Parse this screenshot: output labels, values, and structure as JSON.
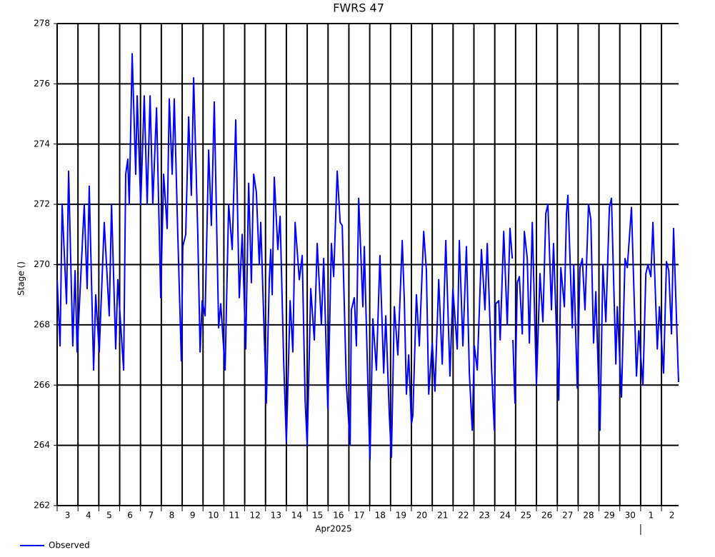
{
  "chart_data": {
    "type": "line",
    "title": "FWRS 47",
    "x_label": "Apr2025",
    "y_label": "Stage ()",
    "x": [
      3.0,
      3.14,
      3.24,
      3.45,
      3.55,
      3.75,
      3.86,
      3.96,
      4.3,
      4.44,
      4.54,
      4.75,
      4.85,
      5.02,
      5.26,
      5.5,
      5.61,
      5.81,
      5.91,
      6.19,
      6.29,
      6.39,
      6.46,
      6.6,
      6.77,
      6.84,
      7.01,
      7.18,
      7.32,
      7.46,
      7.59,
      7.77,
      7.97,
      8.11,
      8.28,
      8.38,
      8.52,
      8.62,
      8.79,
      8.96,
      9.03,
      9.17,
      9.31,
      9.44,
      9.55,
      9.75,
      9.86,
      9.96,
      10.1,
      10.27,
      10.4,
      10.54,
      10.75,
      10.85,
      11.06,
      11.23,
      11.4,
      11.57,
      11.74,
      11.88,
      12.05,
      12.19,
      12.32,
      12.43,
      12.56,
      12.7,
      12.77,
      13.04,
      13.18,
      13.25,
      13.32,
      13.42,
      13.59,
      13.7,
      13.87,
      14.0,
      14.18,
      14.31,
      14.42,
      14.62,
      14.76,
      14.9,
      15.0,
      15.17,
      15.34,
      15.48,
      15.68,
      15.79,
      15.99,
      16.16,
      16.27,
      16.44,
      16.58,
      16.68,
      16.88,
      17.06,
      17.12,
      17.26,
      17.36,
      17.47,
      17.67,
      17.74,
      17.95,
      18.01,
      18.15,
      18.32,
      18.49,
      18.67,
      18.77,
      18.94,
      19.04,
      19.18,
      19.35,
      19.56,
      19.66,
      19.76,
      19.87,
      20.0,
      20.07,
      20.24,
      20.38,
      20.59,
      20.72,
      20.83,
      21.0,
      21.13,
      21.31,
      21.48,
      21.65,
      21.85,
      21.99,
      22.2,
      22.3,
      22.47,
      22.64,
      22.78,
      22.92,
      23.02,
      23.16,
      23.36,
      23.53,
      23.64,
      23.85,
      23.98,
      24.05,
      24.19,
      24.26,
      24.43,
      24.6,
      24.73,
      24.84,
      24.85,
      24.87,
      24.97,
      25.08,
      25.18,
      25.32,
      25.42,
      25.56,
      25.66,
      25.8,
      26.0,
      26.17,
      26.31,
      26.45,
      26.55,
      26.72,
      26.82,
      27.07,
      27.17,
      27.34,
      27.44,
      27.51,
      27.72,
      27.79,
      27.96,
      28.09,
      28.2,
      28.33,
      28.5,
      28.61,
      28.74,
      28.85,
      29.05,
      29.19,
      29.33,
      29.5,
      29.6,
      29.81,
      29.88,
      30.08,
      30.25,
      30.36,
      30.56,
      30.8,
      30.91,
      31.11,
      31.25,
      31.35,
      31.49,
      31.59,
      31.8,
      31.9,
      32.1,
      32.24,
      32.35,
      32.48,
      32.58,
      32.79,
      32.82
    ],
    "series": [
      {
        "name": "Observed",
        "color": "#0000ff",
        "values": [
          269.5,
          267.3,
          272.0,
          268.7,
          273.1,
          267.3,
          269.8,
          267.1,
          272.0,
          269.2,
          272.6,
          266.5,
          269.0,
          267.1,
          271.4,
          268.3,
          272.0,
          267.2,
          269.5,
          266.5,
          273.0,
          273.5,
          272.0,
          277.0,
          273.0,
          275.6,
          272.0,
          275.6,
          272.0,
          275.6,
          272.0,
          275.2,
          268.9,
          273.0,
          271.2,
          275.5,
          273.0,
          275.5,
          271.0,
          266.8,
          270.6,
          271.0,
          274.9,
          272.3,
          276.2,
          271.0,
          267.1,
          268.8,
          268.3,
          273.8,
          271.3,
          275.4,
          267.9,
          268.7,
          266.5,
          272.0,
          270.5,
          274.8,
          268.9,
          271.0,
          267.2,
          272.7,
          269.4,
          273.0,
          272.4,
          270.0,
          271.4,
          265.4,
          269.5,
          270.5,
          269.0,
          272.9,
          270.5,
          271.6,
          266.8,
          264.1,
          268.8,
          267.1,
          271.4,
          269.5,
          270.3,
          265.5,
          264.0,
          269.2,
          267.5,
          270.7,
          268.0,
          270.2,
          265.2,
          270.7,
          269.6,
          273.1,
          271.4,
          271.3,
          266.0,
          264.0,
          268.5,
          268.9,
          267.3,
          272.2,
          268.6,
          270.6,
          265.0,
          263.5,
          268.2,
          266.5,
          270.3,
          266.4,
          268.3,
          265.0,
          263.6,
          268.6,
          267.0,
          270.8,
          268.8,
          265.7,
          267.0,
          264.7,
          265.0,
          269.0,
          267.3,
          271.1,
          269.8,
          265.7,
          267.4,
          265.8,
          269.5,
          266.7,
          270.8,
          266.3,
          269.2,
          267.2,
          270.8,
          267.3,
          270.6,
          266.4,
          264.5,
          267.3,
          266.5,
          270.5,
          268.5,
          270.7,
          266.5,
          264.5,
          268.7,
          268.8,
          267.5,
          271.1,
          268.0,
          271.2,
          270.2,
          null,
          267.5,
          265.4,
          269.4,
          269.6,
          267.7,
          271.1,
          270.2,
          267.4,
          271.4,
          266.0,
          269.7,
          268.1,
          271.7,
          272.0,
          268.5,
          270.7,
          265.5,
          269.9,
          268.6,
          271.7,
          272.3,
          267.9,
          270.0,
          265.9,
          269.9,
          270.2,
          268.5,
          272.0,
          271.5,
          267.4,
          269.1,
          264.5,
          270.0,
          268.1,
          271.9,
          272.2,
          266.7,
          268.6,
          265.6,
          270.2,
          269.9,
          271.9,
          266.3,
          267.8,
          266.0,
          269.7,
          270.0,
          269.6,
          271.4,
          267.2,
          268.6,
          266.4,
          270.1,
          269.8,
          267.7,
          271.2,
          266.7,
          266.1
        ]
      }
    ],
    "xlim": [
      3,
      32.82
    ],
    "ylim": [
      262,
      278
    ],
    "xticks": [
      3,
      4,
      5,
      6,
      7,
      8,
      9,
      10,
      11,
      12,
      13,
      14,
      15,
      16,
      17,
      18,
      19,
      20,
      21,
      22,
      23,
      24,
      25,
      26,
      27,
      28,
      29,
      30,
      {
        "value": 31,
        "label": "1"
      },
      {
        "value": 32,
        "label": "2"
      }
    ],
    "yticks": [
      262,
      264,
      266,
      268,
      270,
      272,
      274,
      276,
      278
    ],
    "grid": true
  }
}
